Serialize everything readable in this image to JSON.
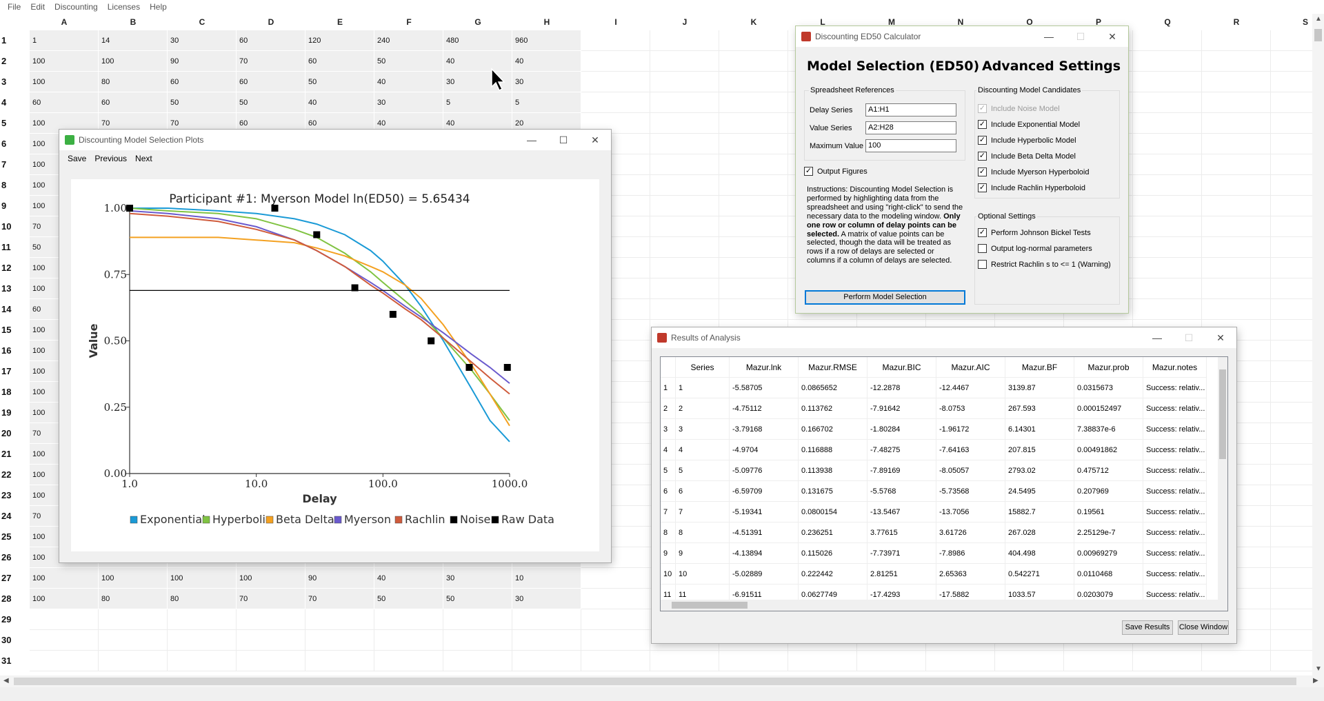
{
  "menubar": [
    "File",
    "Edit",
    "Discounting",
    "Licenses",
    "Help"
  ],
  "sheet": {
    "columns": [
      "A",
      "B",
      "C",
      "D",
      "E",
      "F",
      "G",
      "H",
      "I",
      "J",
      "K",
      "L",
      "M",
      "N",
      "O",
      "P",
      "Q",
      "R",
      "S"
    ],
    "rows": [
      [
        "1",
        "14",
        "30",
        "60",
        "120",
        "240",
        "480",
        "960"
      ],
      [
        "100",
        "100",
        "90",
        "70",
        "60",
        "50",
        "40",
        "40"
      ],
      [
        "100",
        "80",
        "60",
        "60",
        "50",
        "40",
        "30",
        "30"
      ],
      [
        "60",
        "60",
        "50",
        "50",
        "40",
        "30",
        "5",
        "5"
      ],
      [
        "100",
        "70",
        "70",
        "60",
        "60",
        "40",
        "40",
        "20"
      ],
      [
        "100",
        "",
        "",
        "",
        "",
        "",
        "",
        ""
      ],
      [
        "100",
        "",
        "",
        "",
        "",
        "",
        "",
        ""
      ],
      [
        "100",
        "",
        "",
        "",
        "",
        "",
        "",
        ""
      ],
      [
        "100",
        "",
        "",
        "",
        "",
        "",
        "",
        ""
      ],
      [
        "70",
        "",
        "",
        "",
        "",
        "",
        "",
        ""
      ],
      [
        "50",
        "",
        "",
        "",
        "",
        "",
        "",
        ""
      ],
      [
        "100",
        "",
        "",
        "",
        "",
        "",
        "",
        ""
      ],
      [
        "100",
        "",
        "",
        "",
        "",
        "",
        "",
        ""
      ],
      [
        "60",
        "",
        "",
        "",
        "",
        "",
        "",
        ""
      ],
      [
        "100",
        "",
        "",
        "",
        "",
        "",
        "",
        ""
      ],
      [
        "100",
        "",
        "",
        "",
        "",
        "",
        "",
        ""
      ],
      [
        "100",
        "",
        "",
        "",
        "",
        "",
        "",
        ""
      ],
      [
        "100",
        "",
        "",
        "",
        "",
        "",
        "",
        ""
      ],
      [
        "100",
        "",
        "",
        "",
        "",
        "",
        "",
        ""
      ],
      [
        "70",
        "",
        "",
        "",
        "",
        "",
        "",
        ""
      ],
      [
        "100",
        "",
        "",
        "",
        "",
        "",
        "",
        ""
      ],
      [
        "100",
        "",
        "",
        "",
        "",
        "",
        "",
        ""
      ],
      [
        "100",
        "",
        "",
        "",
        "",
        "",
        "",
        ""
      ],
      [
        "70",
        "",
        "",
        "",
        "",
        "",
        "",
        ""
      ],
      [
        "100",
        "",
        "",
        "",
        "",
        "",
        "",
        ""
      ],
      [
        "100",
        "",
        "",
        "",
        "",
        "",
        "",
        ""
      ],
      [
        "100",
        "100",
        "100",
        "100",
        "90",
        "40",
        "30",
        "10"
      ],
      [
        "100",
        "80",
        "80",
        "70",
        "70",
        "50",
        "50",
        "30"
      ],
      [
        "",
        "",
        "",
        "",
        "",
        "",
        "",
        ""
      ],
      [
        "",
        "",
        "",
        "",
        "",
        "",
        "",
        ""
      ],
      [
        "",
        "",
        "",
        "",
        "",
        "",
        "",
        ""
      ]
    ]
  },
  "plot_window": {
    "title": "Discounting Model Selection Plots",
    "menu": [
      "Save",
      "Previous",
      "Next"
    ]
  },
  "chart_data": {
    "type": "line",
    "title": "Participant #1: Myerson Model ln(ED50) = 5.65434",
    "xlabel": "Delay",
    "ylabel": "Value",
    "xscale": "log",
    "xlim": [
      1,
      1000
    ],
    "ylim": [
      0,
      1
    ],
    "xticks": [
      "1.0",
      "10.0",
      "100.0",
      "1000.0"
    ],
    "yticks": [
      "0.00",
      "0.25",
      "0.50",
      "0.75",
      "1.00"
    ],
    "x": [
      1,
      2,
      5,
      10,
      20,
      30,
      50,
      80,
      100,
      150,
      200,
      300,
      500,
      700,
      1000
    ],
    "series": [
      {
        "name": "Exponential",
        "color": "#1a9ad6",
        "values": [
          1.0,
          1.0,
          0.99,
          0.98,
          0.96,
          0.94,
          0.9,
          0.84,
          0.8,
          0.71,
          0.63,
          0.5,
          0.32,
          0.2,
          0.12
        ]
      },
      {
        "name": "Hyperbolic",
        "color": "#80c342",
        "values": [
          1.0,
          0.99,
          0.98,
          0.96,
          0.92,
          0.89,
          0.83,
          0.76,
          0.72,
          0.65,
          0.6,
          0.51,
          0.39,
          0.3,
          0.2
        ]
      },
      {
        "name": "Beta Delta",
        "color": "#f4a121",
        "values": [
          0.89,
          0.89,
          0.89,
          0.88,
          0.87,
          0.85,
          0.82,
          0.78,
          0.76,
          0.71,
          0.66,
          0.56,
          0.41,
          0.3,
          0.18
        ]
      },
      {
        "name": "Myerson",
        "color": "#6a5acd",
        "values": [
          0.99,
          0.98,
          0.96,
          0.93,
          0.88,
          0.84,
          0.78,
          0.72,
          0.69,
          0.63,
          0.59,
          0.53,
          0.45,
          0.4,
          0.34
        ]
      },
      {
        "name": "Rachlin",
        "color": "#cf5b3c",
        "values": [
          0.98,
          0.97,
          0.95,
          0.92,
          0.88,
          0.84,
          0.78,
          0.71,
          0.68,
          0.62,
          0.58,
          0.51,
          0.42,
          0.36,
          0.3
        ]
      },
      {
        "name": "Noise",
        "color": "#000000",
        "values": [
          0.69,
          0.69,
          0.69,
          0.69,
          0.69,
          0.69,
          0.69,
          0.69,
          0.69,
          0.69,
          0.69,
          0.69,
          0.69,
          0.69,
          0.69
        ]
      }
    ],
    "raw_data": {
      "name": "Raw Data",
      "color": "#000000",
      "x": [
        1,
        14,
        30,
        60,
        120,
        240,
        480,
        960
      ],
      "y": [
        1.0,
        1.0,
        0.9,
        0.7,
        0.6,
        0.5,
        0.4,
        0.4
      ]
    },
    "legend": [
      "Exponential",
      "Hyperbolic",
      "Beta Delta",
      "Myerson",
      "Rachlin",
      "Noise",
      "Raw Data"
    ],
    "legend_position": "bottom"
  },
  "calc_window": {
    "title": "Discounting ED50 Calculator",
    "heading_left": "Model Selection (ED50)",
    "heading_right": "Advanced Settings",
    "refs_group": "Spreadsheet References",
    "delay_label": "Delay Series",
    "delay_value": "A1:H1",
    "value_label": "Value Series",
    "value_value": "A2:H28",
    "max_label": "Maximum Value",
    "max_value": "100",
    "output_figures": "Output Figures",
    "instructions_1": "Instructions: Discounting Model Selection is performed by highlighting data from the spreadsheet and using \"right-click\" to send the necessary data to the modeling window. ",
    "instructions_bold": "Only one row or column of delay points can be selected.",
    "instructions_2": " A matrix of value points can be selected, though the data will be treated as rows if a row of delays are selected or columns if a column of delays are selected.",
    "perform_button": "Perform Model Selection",
    "candidates_group": "Discounting Model Candidates",
    "candidates": [
      "Include Noise Model",
      "Include Exponential Model",
      "Include Hyperbolic Model",
      "Include Beta Delta Model",
      "Include Myerson Hyperboloid",
      "Include Rachlin Hyperboloid"
    ],
    "optional_group": "Optional Settings",
    "optional": [
      "Perform Johnson Bickel Tests",
      "Output log-normal parameters",
      "Restrict Rachlin s to <= 1 (Warning)"
    ]
  },
  "results_window": {
    "title": "Results of Analysis",
    "headers": [
      "Series",
      "Mazur.lnk",
      "Mazur.RMSE",
      "Mazur.BIC",
      "Mazur.AIC",
      "Mazur.BF",
      "Mazur.prob",
      "Mazur.notes"
    ],
    "rows": [
      [
        "1",
        "1",
        "-5.58705",
        "0.0865652",
        "-12.2878",
        "-12.4467",
        "3139.87",
        "0.0315673",
        "Success: relativ..."
      ],
      [
        "2",
        "2",
        "-4.75112",
        "0.113762",
        "-7.91642",
        "-8.0753",
        "267.593",
        "0.000152497",
        "Success: relativ..."
      ],
      [
        "3",
        "3",
        "-3.79168",
        "0.166702",
        "-1.80284",
        "-1.96172",
        "6.14301",
        "7.38837e-6",
        "Success: relativ..."
      ],
      [
        "4",
        "4",
        "-4.9704",
        "0.116888",
        "-7.48275",
        "-7.64163",
        "207.815",
        "0.00491862",
        "Success: relativ..."
      ],
      [
        "5",
        "5",
        "-5.09776",
        "0.113938",
        "-7.89169",
        "-8.05057",
        "2793.02",
        "0.475712",
        "Success: relativ..."
      ],
      [
        "6",
        "6",
        "-6.59709",
        "0.131675",
        "-5.5768",
        "-5.73568",
        "24.5495",
        "0.207969",
        "Success: relativ..."
      ],
      [
        "7",
        "7",
        "-5.19341",
        "0.0800154",
        "-13.5467",
        "-13.7056",
        "15882.7",
        "0.19561",
        "Success: relativ..."
      ],
      [
        "8",
        "8",
        "-4.51391",
        "0.236251",
        "3.77615",
        "3.61726",
        "267.028",
        "2.25129e-7",
        "Success: relativ..."
      ],
      [
        "9",
        "9",
        "-4.13894",
        "0.115026",
        "-7.73971",
        "-7.8986",
        "404.498",
        "0.00969279",
        "Success: relativ..."
      ],
      [
        "10",
        "10",
        "-5.02889",
        "0.222442",
        "2.81251",
        "2.65363",
        "0.542271",
        "0.0110468",
        "Success: relativ..."
      ],
      [
        "11",
        "11",
        "-6.91511",
        "0.0627749",
        "-17.4293",
        "-17.5882",
        "1033.57",
        "0.0203079",
        "Success: relativ..."
      ]
    ],
    "save_button": "Save Results",
    "close_button": "Close Window"
  }
}
